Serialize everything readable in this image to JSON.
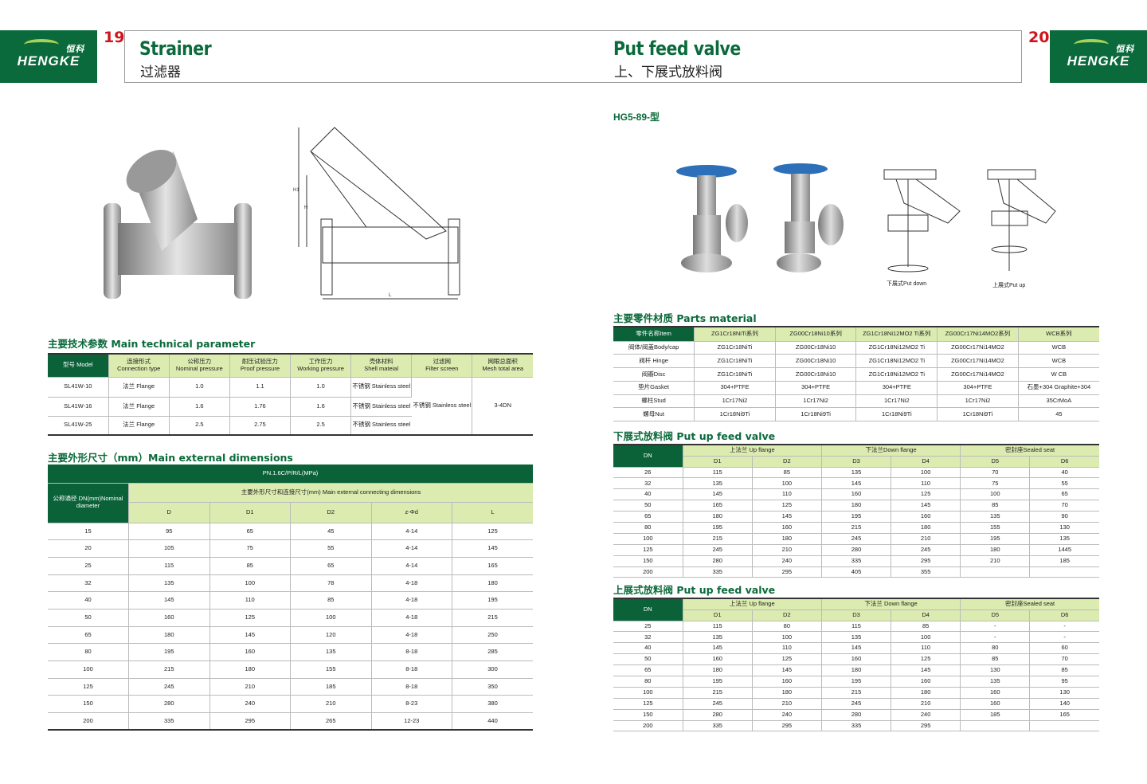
{
  "brand": {
    "logo_text": "ENGKE",
    "logo_cn": "恒科"
  },
  "left_page": {
    "page_number": "19",
    "title_en": "Strainer",
    "title_cn": "过滤器"
  },
  "right_page": {
    "page_number": "20",
    "title_en": "Put feed valve",
    "title_cn": "上、下展式放料阀",
    "model": "HG5-89-型"
  },
  "drawing_labels": {
    "h1": "H1",
    "h": "H",
    "l": "L",
    "put_down": "下展式Put down",
    "put_up": "上展式Put up"
  },
  "tech_params": {
    "title": "主要技术参数 Main technical parameter",
    "headers": [
      [
        "型号 Model",
        ""
      ],
      [
        "连接形式",
        "Connection type"
      ],
      [
        "公称压力",
        "Nominal pressure"
      ],
      [
        "耐压试验压力",
        "Proof pressure"
      ],
      [
        "工作压力",
        "Working pressure"
      ],
      [
        "壳体材料",
        "Shell mateial"
      ],
      [
        "过滤网",
        "Filter screen"
      ],
      [
        "网眼总面积",
        "Mesh total area"
      ]
    ],
    "rows": [
      [
        "SL41W-10",
        "法兰 Flange",
        "1.0",
        "1.1",
        "1.0",
        "不锈钢 Stainless steel"
      ],
      [
        "SL41W-16",
        "法兰 Flange",
        "1.6",
        "1.76",
        "1.6",
        "不锈钢 Stainless steel"
      ],
      [
        "SL41W-25",
        "法兰 Flange",
        "2.5",
        "2.75",
        "2.5",
        "不锈钢 Stainless steel"
      ]
    ],
    "filter_screen": "不锈钢 Stainless steel",
    "mesh_area": "3-4DN"
  },
  "dimensions": {
    "title": "主要外形尺寸（mm）Main external dimensions",
    "pn": "PN.1.6C/P/R/L(MPa)",
    "dn_header": "公称通径 DN(mm)Nominal diameter",
    "group_header": "主要外形尺寸和连接尺寸(mm) Main external connecting dimensions",
    "columns": [
      "D",
      "D1",
      "D2",
      "z-Φd",
      "L"
    ],
    "rows": [
      [
        "15",
        "95",
        "65",
        "45",
        "4-14",
        "125"
      ],
      [
        "20",
        "105",
        "75",
        "55",
        "4-14",
        "145"
      ],
      [
        "25",
        "115",
        "85",
        "65",
        "4-14",
        "165"
      ],
      [
        "32",
        "135",
        "100",
        "78",
        "4-18",
        "180"
      ],
      [
        "40",
        "145",
        "110",
        "85",
        "4-18",
        "195"
      ],
      [
        "50",
        "160",
        "125",
        "100",
        "4-18",
        "215"
      ],
      [
        "65",
        "180",
        "145",
        "120",
        "4-18",
        "250"
      ],
      [
        "80",
        "195",
        "160",
        "135",
        "8-18",
        "285"
      ],
      [
        "100",
        "215",
        "180",
        "155",
        "8-18",
        "300"
      ],
      [
        "125",
        "245",
        "210",
        "185",
        "8-18",
        "350"
      ],
      [
        "150",
        "280",
        "240",
        "210",
        "8-23",
        "380"
      ],
      [
        "200",
        "335",
        "295",
        "265",
        "12-23",
        "440"
      ]
    ]
  },
  "materials": {
    "title": "主要零件材质 Parts material",
    "headers": [
      "零件名称Item",
      "ZG1Cr18NiTi系列",
      "ZG00Cr18Ni10系列",
      "ZG1Cr18Ni12MO2 Ti系列",
      "ZG00Cr17Ni14MO2系列",
      "WCB系列"
    ],
    "rows": [
      [
        "阀体/阀盖Body/cap",
        "ZG1Cr18NiTi",
        "ZG00Cr18Ni10",
        "ZG1Cr18Ni12MO2 Ti",
        "ZG00Cr17Ni14MO2",
        "WCB"
      ],
      [
        "阀杆 Hinge",
        "ZG1Cr18NiTi",
        "ZG00Cr18Ni10",
        "ZG1Cr18Ni12MO2 Ti",
        "ZG00Cr17Ni14MO2",
        "WCB"
      ],
      [
        "阀瓣Disc",
        "ZG1Cr18NiTi",
        "ZG00Cr18Ni10",
        "ZG1Cr18Ni12MO2 Ti",
        "ZG00Cr17Ni14MO2",
        "W CB"
      ],
      [
        "垫片Gasket",
        "304+PTFE",
        "304+PTFE",
        "304+PTFE",
        "304+PTFE",
        "石墨+304 Graphite+304"
      ],
      [
        "螺柱Stud",
        "1Cr17Ni2",
        "1Cr17Ni2",
        "1Cr17Ni2",
        "1Cr17Ni2",
        "35CrMoA"
      ],
      [
        "螺母Nut",
        "1Cr18Ni9Ti",
        "1Cr18Ni9Ti",
        "1Cr18Ni9Ti",
        "1Cr18Ni9Ti",
        "45"
      ]
    ]
  },
  "put_down": {
    "title": "下展式放料阀 Put up feed valve",
    "dn": "DN",
    "groups": [
      "上法兰 Up flange",
      "下法兰Down flange",
      "密封座Sealed seat"
    ],
    "columns": [
      "D1",
      "D2",
      "D3",
      "D4",
      "D5",
      "D6"
    ],
    "rows": [
      [
        "26",
        "115",
        "85",
        "135",
        "100",
        "70",
        "40"
      ],
      [
        "32",
        "135",
        "100",
        "145",
        "110",
        "75",
        "55"
      ],
      [
        "40",
        "145",
        "110",
        "160",
        "125",
        "100",
        "65"
      ],
      [
        "50",
        "165",
        "125",
        "180",
        "145",
        "85",
        "70"
      ],
      [
        "65",
        "180",
        "145",
        "195",
        "160",
        "135",
        "90"
      ],
      [
        "80",
        "195",
        "160",
        "215",
        "180",
        "155",
        "130"
      ],
      [
        "100",
        "215",
        "180",
        "245",
        "210",
        "195",
        "135"
      ],
      [
        "125",
        "245",
        "210",
        "280",
        "245",
        "180",
        "1445"
      ],
      [
        "150",
        "280",
        "240",
        "335",
        "295",
        "210",
        "185"
      ],
      [
        "200",
        "335",
        "295",
        "405",
        "355",
        "",
        ""
      ]
    ]
  },
  "put_up": {
    "title": "上展式放料阀 Put up feed valve",
    "dn": "DN",
    "groups": [
      "上法兰 Up flange",
      "下法兰 Down flange",
      "密封座Sealed seat"
    ],
    "columns": [
      "D1",
      "D2",
      "D3",
      "D4",
      "D5",
      "D6"
    ],
    "rows": [
      [
        "25",
        "115",
        "80",
        "115",
        "85",
        "-",
        "-"
      ],
      [
        "32",
        "135",
        "100",
        "135",
        "100",
        "-",
        "-"
      ],
      [
        "40",
        "145",
        "110",
        "145",
        "110",
        "80",
        "60"
      ],
      [
        "50",
        "160",
        "125",
        "160",
        "125",
        "85",
        "70"
      ],
      [
        "65",
        "180",
        "145",
        "180",
        "145",
        "130",
        "85"
      ],
      [
        "80",
        "195",
        "160",
        "195",
        "160",
        "135",
        "95"
      ],
      [
        "100",
        "215",
        "180",
        "215",
        "180",
        "160",
        "130"
      ],
      [
        "125",
        "245",
        "210",
        "245",
        "210",
        "160",
        "140"
      ],
      [
        "150",
        "280",
        "240",
        "280",
        "240",
        "185",
        "165"
      ],
      [
        "200",
        "335",
        "295",
        "335",
        "295",
        "",
        ""
      ]
    ]
  },
  "colors": {
    "dark_green": "#0b6239",
    "light_green": "#dcecb0",
    "page_number_red": "#d0141b"
  }
}
